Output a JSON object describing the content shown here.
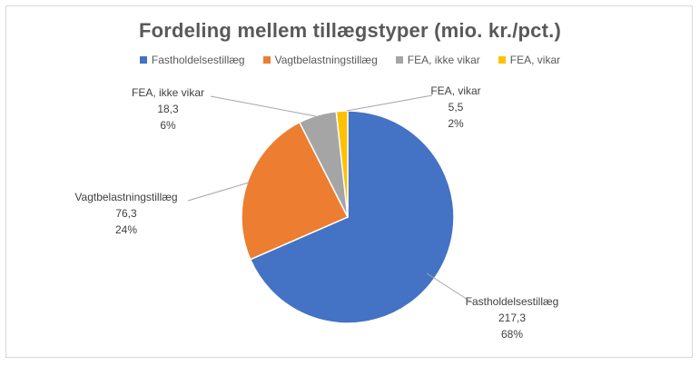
{
  "chart_data": {
    "type": "pie",
    "title": "Fordeling mellem tillægstyper (mio. kr./pct.)",
    "legend_position": "top",
    "slices": [
      {
        "name": "Fastholdelsestillæg",
        "value_label": "217,3",
        "value": 217.3,
        "percent_label": "68%",
        "color": "#4472c4"
      },
      {
        "name": "Vagtbelastningstillæg",
        "value_label": "76,3",
        "value": 76.3,
        "percent_label": "24%",
        "color": "#ed7d31"
      },
      {
        "name": "FEA, ikke vikar",
        "value_label": "18,3",
        "value": 18.3,
        "percent_label": "6%",
        "color": "#a5a5a5"
      },
      {
        "name": "FEA, vikar",
        "value_label": "5,5",
        "value": 5.5,
        "percent_label": "2%",
        "color": "#ffc000"
      }
    ]
  }
}
